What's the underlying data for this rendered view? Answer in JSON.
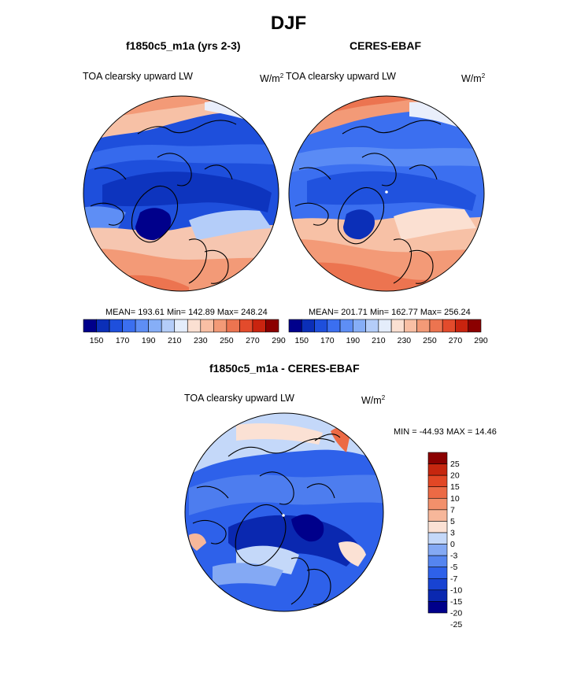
{
  "figure": {
    "title": "DJF"
  },
  "colors": {
    "cbar_11": [
      "#00008b",
      "#0b2fb8",
      "#1e4fdc",
      "#3b6ff0",
      "#5e8ef5",
      "#86aef7",
      "#b4cdf9",
      "#e4edfb",
      "#fbe0d2",
      "#f9bfa4",
      "#f39a77",
      "#ec7450",
      "#e34b2c",
      "#c9240f",
      "#8b0000"
    ],
    "cbar_diff": [
      "#00008b",
      "#0a28b0",
      "#1843d2",
      "#2e61ea",
      "#5585f0",
      "#84a9f4",
      "#c4d8f9",
      "#fbe1d4",
      "#f7b79a",
      "#f2906b",
      "#ec6a45",
      "#e24725",
      "#c6260f",
      "#8b0000"
    ],
    "ocean_deep": "#1f4ecf",
    "land_warm": "#f4a383"
  },
  "chart_data": [
    {
      "type": "heatmap",
      "name": "f1850c5_m1a (yrs 2-3)",
      "title": "f1850c5_m1a (yrs 2-3)",
      "left_label": "TOA clearsky upward LW",
      "right_label": "W/m",
      "units_sup": "2",
      "projection": "north polar stereographic",
      "stats": "MEAN= 193.61  Min= 142.89  Max= 248.24",
      "mean": 193.61,
      "min": 142.89,
      "max": 248.24,
      "colorbar": {
        "orientation": "horizontal",
        "levels": [
          140,
          150,
          160,
          170,
          180,
          190,
          200,
          210,
          220,
          230,
          240,
          250,
          260,
          270,
          280,
          290
        ],
        "tick_labels": [
          "150",
          "170",
          "190",
          "210",
          "230",
          "250",
          "270",
          "290"
        ]
      }
    },
    {
      "type": "heatmap",
      "name": "CERES-EBAF",
      "title": "CERES-EBAF",
      "left_label": "TOA clearsky upward LW",
      "right_label": "W/m",
      "units_sup": "2",
      "projection": "north polar stereographic",
      "stats": "MEAN= 201.71  Min= 162.77  Max= 256.24",
      "mean": 201.71,
      "min": 162.77,
      "max": 256.24,
      "colorbar": {
        "orientation": "horizontal",
        "levels": [
          140,
          150,
          160,
          170,
          180,
          190,
          200,
          210,
          220,
          230,
          240,
          250,
          260,
          270,
          280,
          290
        ],
        "tick_labels": [
          "150",
          "170",
          "190",
          "210",
          "230",
          "250",
          "270",
          "290"
        ]
      }
    },
    {
      "type": "heatmap",
      "name": "f1850c5_m1a - CERES-EBAF",
      "title": "f1850c5_m1a - CERES-EBAF",
      "left_label": "TOA clearsky upward LW",
      "right_label": "W/m",
      "units_sup": "2",
      "projection": "north polar stereographic",
      "stats": "MIN = -44.93 MAX =  14.46",
      "min": -44.93,
      "max": 14.46,
      "colorbar": {
        "orientation": "vertical",
        "levels": [
          25,
          20,
          15,
          10,
          7,
          5,
          3,
          0,
          -3,
          -5,
          -7,
          -10,
          -15,
          -20,
          -25
        ],
        "tick_labels": [
          "25",
          "20",
          "15",
          "10",
          "7",
          "5",
          "3",
          "0",
          "-3",
          "-5",
          "-7",
          "-10",
          "-15",
          "-20",
          "-25"
        ]
      }
    }
  ]
}
